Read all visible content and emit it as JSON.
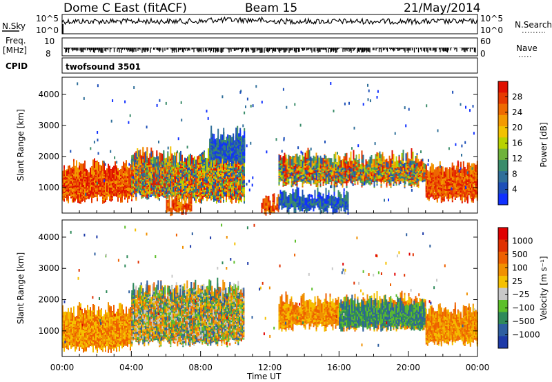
{
  "header": {
    "station": "Dome C East (fitACF)",
    "beam": "Beam 15",
    "date": "21/May/2014"
  },
  "strips": {
    "nsky_label": "N.Sky",
    "nsky_ticks": [
      "10^5",
      "10^0"
    ],
    "nsearch_label": "N.Search",
    "nsearch_ticks": [
      "10^5",
      "10^0"
    ],
    "freq_label": "Freq.",
    "freq_unit": "[MHz]",
    "freq_ticks": [
      "10",
      "8"
    ],
    "nave_label": "Nave",
    "nave_ticks": [
      "60",
      "0"
    ],
    "cpid_label": "CPID",
    "cpid_value": "twofsound 3501"
  },
  "chart_data": [
    {
      "type": "heatmap",
      "name": "power",
      "ylabel": "Slant Range [km]",
      "xlabel": "Time UT",
      "x_ticks": [
        "00:00",
        "04:00",
        "08:00",
        "12:00",
        "16:00",
        "20:00",
        "00:00"
      ],
      "xlim_hours": [
        0,
        24
      ],
      "ylim": [
        180,
        4550
      ],
      "y_ticks": [
        1000,
        2000,
        3000,
        4000
      ],
      "colorbar": {
        "label": "Power [dB]",
        "ticks": [
          "4",
          "8",
          "12",
          "16",
          "20",
          "24",
          "28"
        ],
        "colors": [
          "#1030ff",
          "#1d4fb8",
          "#2f6f9a",
          "#3a8c6a",
          "#6fb23a",
          "#b8d200",
          "#f2c200",
          "#f39a00",
          "#ee6a00",
          "#e63a00",
          "#e01000"
        ]
      },
      "echo_bands": [
        {
          "t": [
            0,
            4
          ],
          "range": [
            600,
            1500
          ],
          "level": "high"
        },
        {
          "t": [
            4,
            6.5
          ],
          "range": [
            700,
            1900
          ],
          "level": "mixed"
        },
        {
          "t": [
            6.5,
            10.5
          ],
          "range": [
            600,
            1800
          ],
          "level": "mixed"
        },
        {
          "t": [
            8.5,
            10.5
          ],
          "range": [
            1800,
            2500
          ],
          "level": "low"
        },
        {
          "t": [
            12.5,
            21
          ],
          "range": [
            1100,
            1800
          ],
          "level": "mixed"
        },
        {
          "t": [
            21,
            24
          ],
          "range": [
            600,
            1500
          ],
          "level": "high"
        },
        {
          "t": [
            6,
            7.5
          ],
          "range": [
            200,
            400
          ],
          "level": "high"
        },
        {
          "t": [
            11.5,
            12.5
          ],
          "range": [
            200,
            450
          ],
          "level": "high"
        },
        {
          "t": [
            12.5,
            16.5
          ],
          "range": [
            250,
            600
          ],
          "level": "low"
        }
      ]
    },
    {
      "type": "heatmap",
      "name": "velocity",
      "ylabel": "Slant Range [km]",
      "xlabel": "Time UT",
      "x_ticks": [
        "00:00",
        "04:00",
        "08:00",
        "12:00",
        "16:00",
        "20:00",
        "00:00"
      ],
      "xlim_hours": [
        0,
        24
      ],
      "ylim": [
        180,
        4550
      ],
      "y_ticks": [
        1000,
        2000,
        3000,
        4000
      ],
      "colorbar": {
        "label": "Velocity [m s⁻¹]",
        "ticks": [
          "1000",
          "500",
          "100",
          "25",
          "−25",
          "−100",
          "−500",
          "−1000"
        ],
        "colors": [
          "#1d3aa8",
          "#2e5fa0",
          "#2f8a5a",
          "#5cbf2a",
          "#c8c8c8",
          "#f5c000",
          "#f19000",
          "#ee6000",
          "#e03000",
          "#e00000"
        ]
      },
      "echo_bands": [
        {
          "t": [
            0,
            4
          ],
          "range": [
            400,
            1500
          ],
          "level": "negative"
        },
        {
          "t": [
            4,
            10.5
          ],
          "range": [
            600,
            2200
          ],
          "level": "mixed"
        },
        {
          "t": [
            12.5,
            21
          ],
          "range": [
            1100,
            1800
          ],
          "level": "negative"
        },
        {
          "t": [
            16,
            21
          ],
          "range": [
            1100,
            1700
          ],
          "level": "positive"
        },
        {
          "t": [
            21,
            24
          ],
          "range": [
            600,
            1500
          ],
          "level": "negative"
        }
      ]
    }
  ]
}
